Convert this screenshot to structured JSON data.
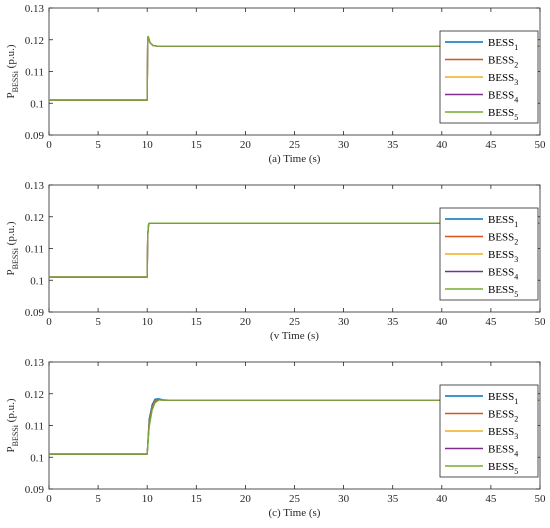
{
  "ylabel_main": "P",
  "ylabel_sub": "BESSi",
  "ylabel_unit": " (p.u.)",
  "legend_prefix": "BESS",
  "chart_data": [
    {
      "type": "line",
      "xlabel": "(a) Time (s)",
      "xlim": [
        0,
        50
      ],
      "ylim": [
        0.09,
        0.13
      ],
      "xticks": [
        0,
        5,
        10,
        15,
        20,
        25,
        30,
        35,
        40,
        45,
        50
      ],
      "yticks": [
        0.09,
        0.1,
        0.11,
        0.12,
        0.13
      ],
      "ytick_labels": [
        "0.09",
        "0.1",
        "0.11",
        "0.12",
        "0.13"
      ],
      "legend": "top-right",
      "series": [
        {
          "name": "BESS1",
          "sub": "1",
          "color": "#0072BD",
          "x": [
            0,
            10,
            10.05,
            10.1,
            10.3,
            10.6,
            11,
            12,
            50
          ],
          "y": [
            0.101,
            0.101,
            0.1205,
            0.121,
            0.119,
            0.1182,
            0.118,
            0.118,
            0.118
          ]
        },
        {
          "name": "BESS2",
          "sub": "2",
          "color": "#D95319",
          "x": [
            0,
            10,
            10.05,
            10.1,
            10.3,
            10.6,
            11,
            12,
            50
          ],
          "y": [
            0.101,
            0.101,
            0.1205,
            0.121,
            0.119,
            0.1182,
            0.118,
            0.118,
            0.118
          ]
        },
        {
          "name": "BESS3",
          "sub": "3",
          "color": "#EDB120",
          "x": [
            0,
            10,
            10.05,
            10.1,
            10.3,
            10.6,
            11,
            12,
            50
          ],
          "y": [
            0.101,
            0.101,
            0.1205,
            0.121,
            0.119,
            0.1182,
            0.118,
            0.118,
            0.118
          ]
        },
        {
          "name": "BESS4",
          "sub": "4",
          "color": "#7E2F8E",
          "x": [
            0,
            10,
            10.05,
            10.1,
            10.3,
            10.6,
            11,
            12,
            50
          ],
          "y": [
            0.101,
            0.101,
            0.1205,
            0.121,
            0.119,
            0.1182,
            0.118,
            0.118,
            0.118
          ]
        },
        {
          "name": "BESS5",
          "sub": "5",
          "color": "#77AC30",
          "x": [
            0,
            10,
            10.05,
            10.1,
            10.3,
            10.6,
            11,
            12,
            50
          ],
          "y": [
            0.101,
            0.101,
            0.1205,
            0.121,
            0.119,
            0.1182,
            0.118,
            0.118,
            0.118
          ]
        }
      ]
    },
    {
      "type": "line",
      "xlabel": "(v Time (s)",
      "xlim": [
        0,
        50
      ],
      "ylim": [
        0.09,
        0.13
      ],
      "xticks": [
        0,
        5,
        10,
        15,
        20,
        25,
        30,
        35,
        40,
        45,
        50
      ],
      "yticks": [
        0.09,
        0.1,
        0.11,
        0.12,
        0.13
      ],
      "ytick_labels": [
        "0.09",
        "0.1",
        "0.11",
        "0.12",
        "0.13"
      ],
      "legend": "top-right",
      "series": [
        {
          "name": "BESS1",
          "sub": "1",
          "color": "#0072BD",
          "x": [
            0,
            10,
            10.05,
            10.15,
            10.3,
            50
          ],
          "y": [
            0.101,
            0.101,
            0.114,
            0.1178,
            0.118,
            0.118
          ]
        },
        {
          "name": "BESS2",
          "sub": "2",
          "color": "#D95319",
          "x": [
            0,
            10,
            10.05,
            10.15,
            10.3,
            50
          ],
          "y": [
            0.101,
            0.101,
            0.114,
            0.1178,
            0.118,
            0.118
          ]
        },
        {
          "name": "BESS3",
          "sub": "3",
          "color": "#EDB120",
          "x": [
            0,
            10,
            10.05,
            10.15,
            10.3,
            50
          ],
          "y": [
            0.101,
            0.101,
            0.114,
            0.1178,
            0.118,
            0.118
          ]
        },
        {
          "name": "BESS4",
          "sub": "4",
          "color": "#7E2F8E",
          "x": [
            0,
            10,
            10.05,
            10.15,
            10.3,
            50
          ],
          "y": [
            0.101,
            0.101,
            0.114,
            0.1178,
            0.118,
            0.118
          ]
        },
        {
          "name": "BESS5",
          "sub": "5",
          "color": "#77AC30",
          "x": [
            0,
            10,
            10.05,
            10.15,
            10.3,
            50
          ],
          "y": [
            0.101,
            0.101,
            0.114,
            0.1178,
            0.118,
            0.118
          ]
        }
      ]
    },
    {
      "type": "line",
      "xlabel": "(c) Time (s)",
      "xlim": [
        0,
        50
      ],
      "ylim": [
        0.09,
        0.13
      ],
      "xticks": [
        0,
        5,
        10,
        15,
        20,
        25,
        30,
        35,
        40,
        45,
        50
      ],
      "yticks": [
        0.09,
        0.1,
        0.11,
        0.12,
        0.13
      ],
      "ytick_labels": [
        "0.09",
        "0.1",
        "0.11",
        "0.12",
        "0.13"
      ],
      "legend": "top-right",
      "series": [
        {
          "name": "BESS1",
          "sub": "1",
          "color": "#0072BD",
          "x": [
            0,
            10,
            10.2,
            10.5,
            10.8,
            11.2,
            11.6,
            12.2,
            50
          ],
          "y": [
            0.101,
            0.101,
            0.112,
            0.1165,
            0.1183,
            0.1184,
            0.1181,
            0.118,
            0.118
          ]
        },
        {
          "name": "BESS2",
          "sub": "2",
          "color": "#D95319",
          "x": [
            0,
            10,
            10.2,
            10.5,
            10.8,
            11.2,
            11.6,
            12.2,
            50
          ],
          "y": [
            0.101,
            0.101,
            0.111,
            0.1158,
            0.1178,
            0.1182,
            0.118,
            0.118,
            0.118
          ]
        },
        {
          "name": "BESS3",
          "sub": "3",
          "color": "#EDB120",
          "x": [
            0,
            10,
            10.2,
            10.5,
            10.8,
            11.2,
            11.6,
            12.2,
            50
          ],
          "y": [
            0.101,
            0.101,
            0.1105,
            0.1155,
            0.1176,
            0.1181,
            0.118,
            0.118,
            0.118
          ]
        },
        {
          "name": "BESS4",
          "sub": "4",
          "color": "#7E2F8E",
          "x": [
            0,
            10,
            10.2,
            10.5,
            10.8,
            11.2,
            11.6,
            12.2,
            50
          ],
          "y": [
            0.101,
            0.101,
            0.11,
            0.1152,
            0.1174,
            0.1181,
            0.118,
            0.118,
            0.118
          ]
        },
        {
          "name": "BESS5",
          "sub": "5",
          "color": "#77AC30",
          "x": [
            0,
            10,
            10.2,
            10.5,
            10.8,
            11.2,
            11.6,
            12.2,
            50
          ],
          "y": [
            0.101,
            0.101,
            0.1095,
            0.1148,
            0.1172,
            0.118,
            0.118,
            0.118,
            0.118
          ]
        }
      ]
    }
  ]
}
